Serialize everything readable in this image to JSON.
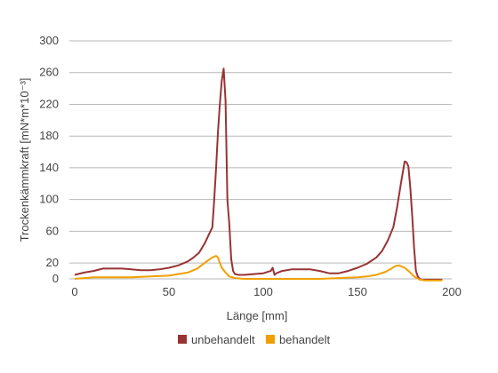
{
  "chart_data": {
    "type": "line",
    "xlabel": "Länge [mm]",
    "ylabel": "Trockenkämmkraft [mN*m*10⁻³]",
    "xlim": [
      0,
      200
    ],
    "ylim": [
      0,
      300
    ],
    "x_ticks": [
      0,
      50,
      100,
      150,
      200
    ],
    "y_ticks": [
      0,
      20,
      60,
      100,
      140,
      180,
      220,
      260,
      300
    ],
    "grid": "horizontal",
    "legend_position": "bottom",
    "series": [
      {
        "name": "unbehandelt",
        "color": "#993333",
        "x": [
          0,
          5,
          10,
          15,
          20,
          25,
          30,
          35,
          40,
          45,
          50,
          55,
          60,
          63,
          66,
          69,
          71,
          73,
          74,
          75,
          76,
          77,
          78,
          79,
          80,
          81,
          82,
          83,
          84,
          85,
          87,
          90,
          95,
          100,
          104,
          105,
          106,
          107,
          110,
          115,
          120,
          125,
          130,
          135,
          140,
          145,
          150,
          155,
          160,
          163,
          166,
          169,
          171,
          173,
          175,
          176,
          177,
          178,
          179,
          180,
          181,
          182,
          183,
          184,
          186,
          190,
          195
        ],
        "y": [
          5,
          8,
          10,
          13,
          13,
          13,
          12,
          11,
          11,
          12,
          14,
          17,
          22,
          27,
          33,
          45,
          55,
          65,
          100,
          140,
          185,
          220,
          250,
          265,
          225,
          100,
          70,
          25,
          10,
          6,
          5,
          5,
          6,
          7,
          10,
          14,
          5,
          7,
          10,
          12,
          12,
          12,
          10,
          7,
          7,
          10,
          14,
          19,
          27,
          35,
          48,
          65,
          90,
          120,
          148,
          147,
          142,
          115,
          80,
          40,
          10,
          3,
          0,
          -1,
          -1,
          -1,
          -1
        ]
      },
      {
        "name": "behandelt",
        "color": "#f0a000",
        "x": [
          0,
          5,
          10,
          20,
          30,
          40,
          50,
          60,
          65,
          70,
          73,
          75,
          76,
          77,
          78,
          80,
          82,
          85,
          90,
          100,
          110,
          120,
          130,
          140,
          150,
          155,
          160,
          165,
          168,
          170,
          172,
          175,
          178,
          180,
          183,
          186,
          190,
          195
        ],
        "y": [
          0,
          1,
          2,
          2,
          2,
          3,
          4,
          8,
          13,
          22,
          27,
          29,
          27,
          20,
          14,
          8,
          3,
          1,
          0,
          0,
          0,
          0,
          0,
          1,
          2,
          3,
          5,
          9,
          13,
          16,
          17,
          14,
          8,
          3,
          -1,
          -2,
          -2,
          -2
        ]
      }
    ]
  }
}
